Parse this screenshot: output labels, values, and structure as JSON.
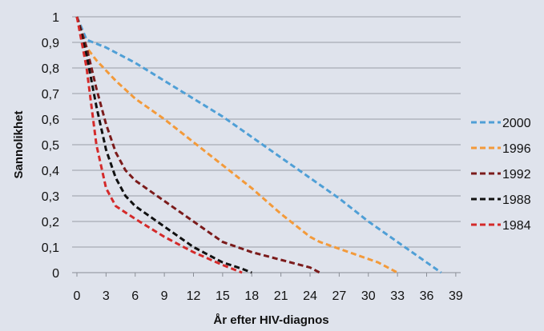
{
  "chart_data": {
    "type": "line",
    "xlabel": "År efter HIV-diagnos",
    "ylabel": "Sannolikhet",
    "xlim": [
      0,
      40
    ],
    "ylim": [
      0,
      1
    ],
    "x_ticks": [
      "0",
      "3",
      "6",
      "9",
      "12",
      "15",
      "18",
      "21",
      "24",
      "27",
      "30",
      "33",
      "36",
      "39"
    ],
    "y_ticks": [
      "0",
      "0,1",
      "0,2",
      "0,3",
      "0,4",
      "0,5",
      "0,6",
      "0,7",
      "0,8",
      "0,9",
      "1"
    ],
    "grid": "horizontal",
    "legend_position": "right",
    "series": [
      {
        "name": "2000",
        "color": "#4f9fd6",
        "x": [
          0,
          1,
          3,
          6,
          9,
          12,
          15,
          18,
          21,
          24,
          27,
          30,
          33,
          36,
          37.5
        ],
        "y": [
          1,
          0.91,
          0.88,
          0.82,
          0.75,
          0.68,
          0.61,
          0.53,
          0.45,
          0.37,
          0.29,
          0.2,
          0.12,
          0.04,
          0
        ]
      },
      {
        "name": "1996",
        "color": "#f39a3a",
        "x": [
          0,
          1,
          2,
          4,
          6,
          9,
          12,
          15,
          18,
          21,
          24,
          25,
          28,
          31,
          33
        ],
        "y": [
          1,
          0.88,
          0.83,
          0.75,
          0.68,
          0.6,
          0.51,
          0.42,
          0.33,
          0.23,
          0.14,
          0.12,
          0.08,
          0.04,
          0
        ]
      },
      {
        "name": "1992",
        "color": "#7b1b1b",
        "x": [
          0,
          1,
          2,
          3,
          4,
          5,
          6,
          9,
          12,
          15,
          18,
          21,
          24,
          25
        ],
        "y": [
          1,
          0.88,
          0.72,
          0.58,
          0.47,
          0.4,
          0.36,
          0.28,
          0.2,
          0.12,
          0.08,
          0.05,
          0.02,
          0
        ]
      },
      {
        "name": "1988",
        "color": "#111111",
        "x": [
          0,
          1,
          2,
          3,
          4,
          5,
          6,
          9,
          12,
          15,
          17,
          18
        ],
        "y": [
          1,
          0.85,
          0.65,
          0.48,
          0.37,
          0.3,
          0.26,
          0.18,
          0.1,
          0.04,
          0.015,
          0
        ]
      },
      {
        "name": "1984",
        "color": "#d42a2a",
        "x": [
          0,
          1,
          2,
          3,
          4,
          6,
          9,
          12,
          15,
          17
        ],
        "y": [
          1,
          0.8,
          0.5,
          0.33,
          0.26,
          0.21,
          0.14,
          0.08,
          0.03,
          0
        ]
      }
    ]
  }
}
